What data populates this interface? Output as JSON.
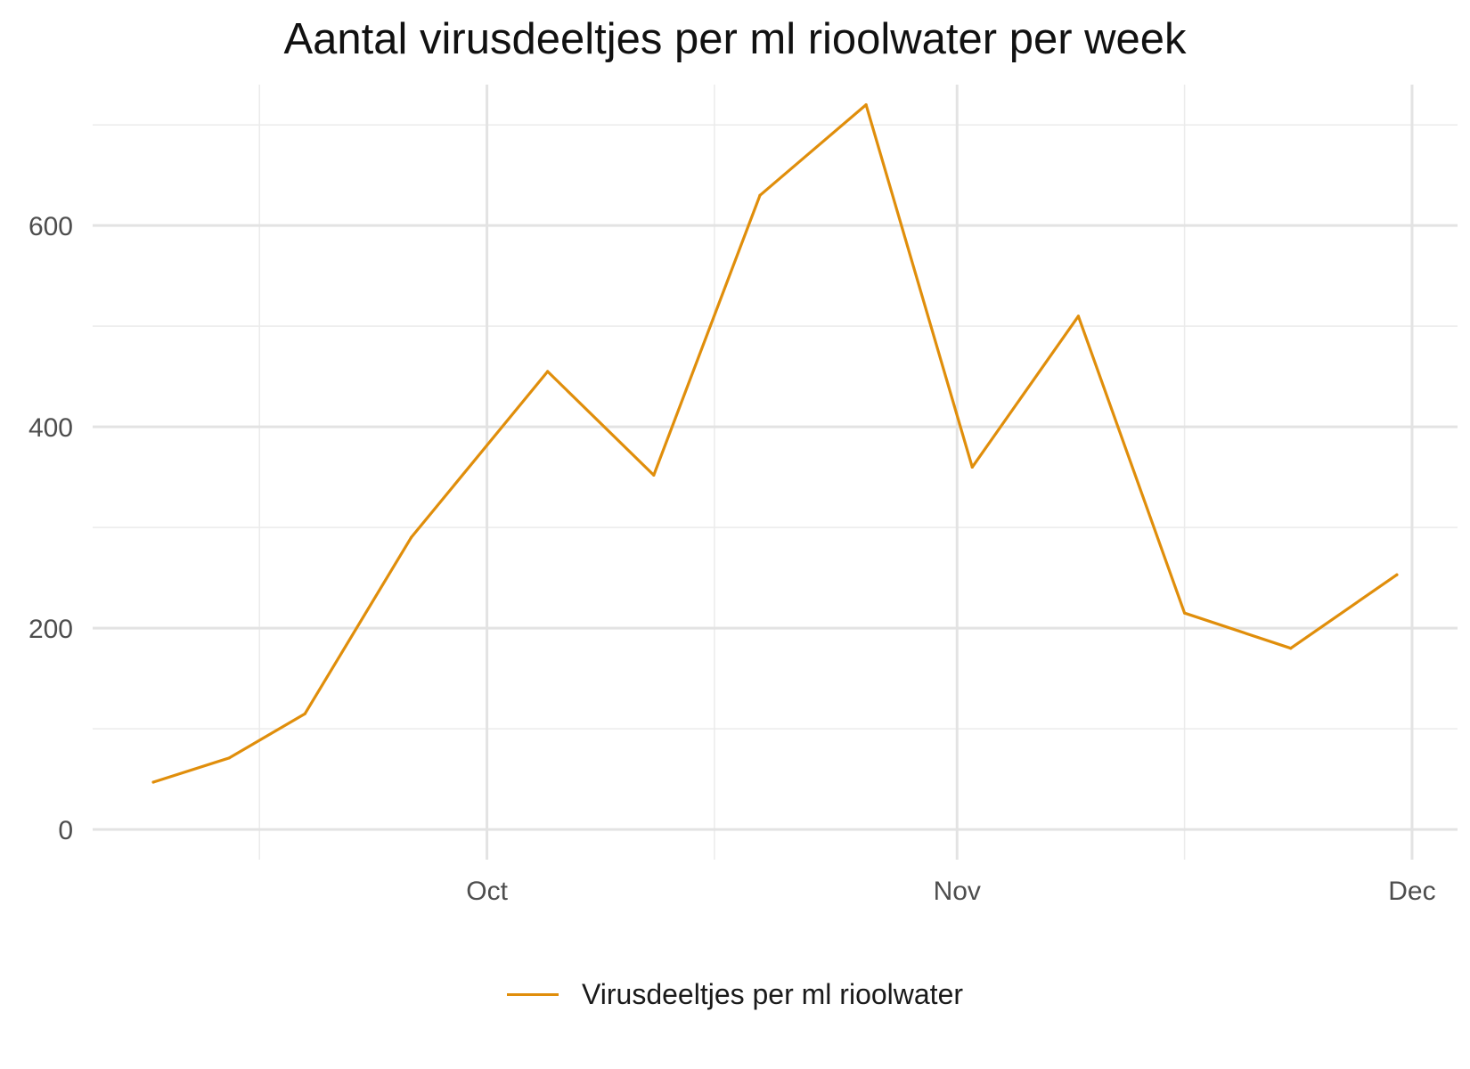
{
  "chart_data": {
    "type": "line",
    "title": "Aantal virusdeeltjes per ml rioolwater per week",
    "xlabel": "",
    "ylabel": "",
    "x_type": "date",
    "x_tick_labels": [
      {
        "date": "2020-10-01",
        "label": "Oct"
      },
      {
        "date": "2020-11-01",
        "label": "Nov"
      },
      {
        "date": "2020-12-01",
        "label": "Dec"
      }
    ],
    "x_minor_grid_dates": [
      "2020-09-16",
      "2020-10-16",
      "2020-11-16"
    ],
    "xlim": [
      "2020-09-05",
      "2020-12-04"
    ],
    "y_ticks": [
      0,
      200,
      400,
      600
    ],
    "y_minor_ticks": [
      100,
      300,
      500,
      700
    ],
    "ylim": [
      -30,
      740
    ],
    "grid": true,
    "legend_position": "bottom",
    "series": [
      {
        "name": "Virusdeeltjes per ml rioolwater",
        "color": "#E08E0B",
        "points": [
          {
            "x": "2020-09-09",
            "y": 47
          },
          {
            "x": "2020-09-14",
            "y": 71
          },
          {
            "x": "2020-09-19",
            "y": 115
          },
          {
            "x": "2020-09-26",
            "y": 290
          },
          {
            "x": "2020-10-05",
            "y": 455
          },
          {
            "x": "2020-10-12",
            "y": 352
          },
          {
            "x": "2020-10-19",
            "y": 630
          },
          {
            "x": "2020-10-26",
            "y": 720
          },
          {
            "x": "2020-11-02",
            "y": 360
          },
          {
            "x": "2020-11-09",
            "y": 510
          },
          {
            "x": "2020-11-16",
            "y": 215
          },
          {
            "x": "2020-11-23",
            "y": 180
          },
          {
            "x": "2020-11-30",
            "y": 253
          }
        ]
      }
    ]
  }
}
